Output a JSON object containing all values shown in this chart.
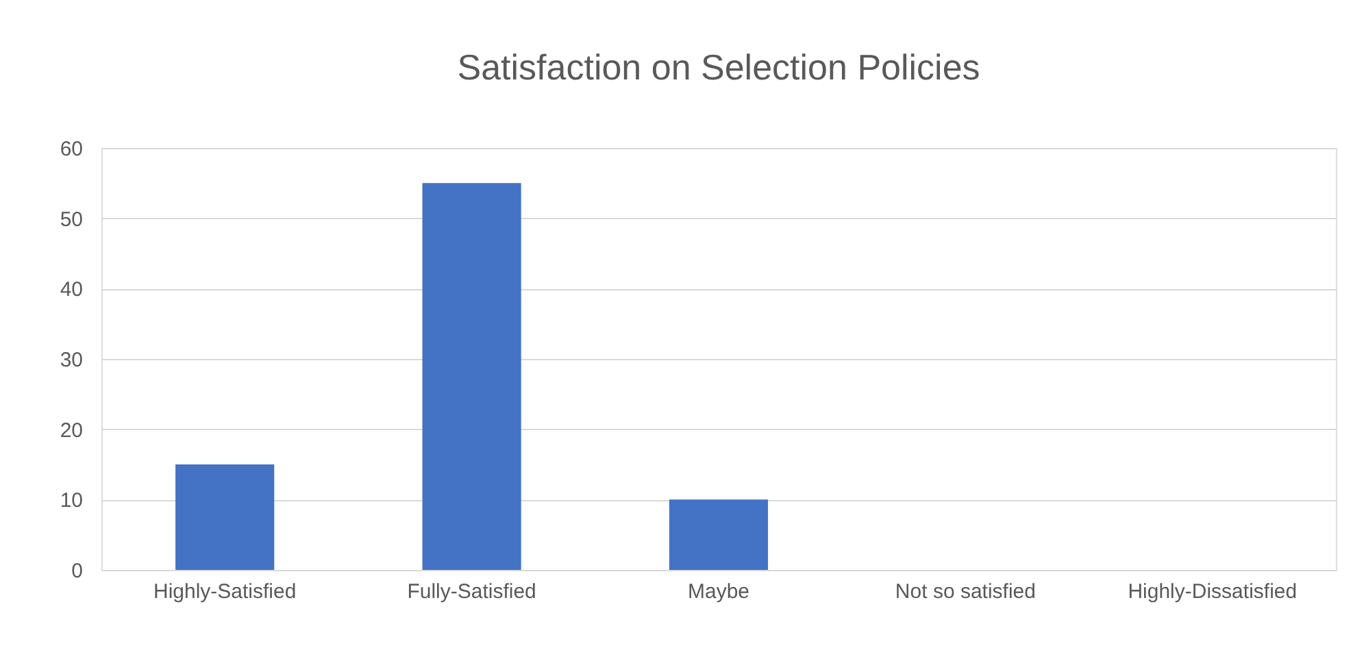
{
  "chart_data": {
    "type": "bar",
    "title": "Satisfaction on Selection Policies",
    "categories": [
      "Highly-Satisfied",
      "Fully-Satisfied",
      "Maybe",
      "Not so satisfied",
      "Highly-Dissatisfied"
    ],
    "values": [
      15,
      55,
      10,
      0,
      0
    ],
    "color": "#4472c4",
    "ylim": [
      0,
      60
    ],
    "yticks": [
      0,
      10,
      20,
      30,
      40,
      50,
      60
    ],
    "grid": "y"
  }
}
